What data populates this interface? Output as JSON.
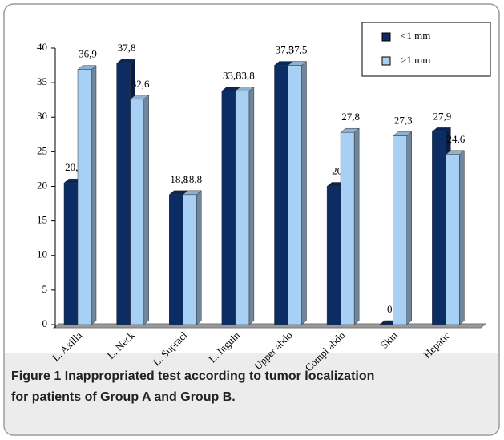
{
  "chart_data": {
    "type": "bar",
    "caption_label": "Figure 1",
    "caption": "Inappropriated test according to tumor localization",
    "caption_line2": "for patients of Group A and Group B.",
    "categories": [
      "L. Axilla",
      "L. Neck",
      "L. Supracl",
      "L. Inguin",
      "Upper abdo",
      "Compl abdo",
      "Skin",
      "Hepatic"
    ],
    "series": [
      {
        "name": "<1 mm",
        "color": "#0b2d64",
        "values": [
          20.5,
          37.8,
          18.8,
          33.8,
          37.5,
          20,
          0,
          27.9
        ],
        "value_labels": [
          "20,5",
          "37,8",
          "18,8",
          "33,8",
          "37,5",
          "20",
          "0",
          "27,9"
        ]
      },
      {
        "name": ">1 mm",
        "color": "#a8d0f5",
        "values": [
          36.9,
          32.6,
          18.8,
          33.8,
          37.5,
          27.8,
          27.3,
          24.6
        ],
        "value_labels": [
          "36,9",
          "32,6",
          "18,8",
          "33,8",
          "37,5",
          "27,8",
          "27,3",
          "24,6"
        ]
      }
    ],
    "ylim": [
      0,
      40
    ],
    "yticks": [
      0,
      5,
      10,
      15,
      20,
      25,
      30,
      35,
      40
    ],
    "legend": "top-right"
  }
}
